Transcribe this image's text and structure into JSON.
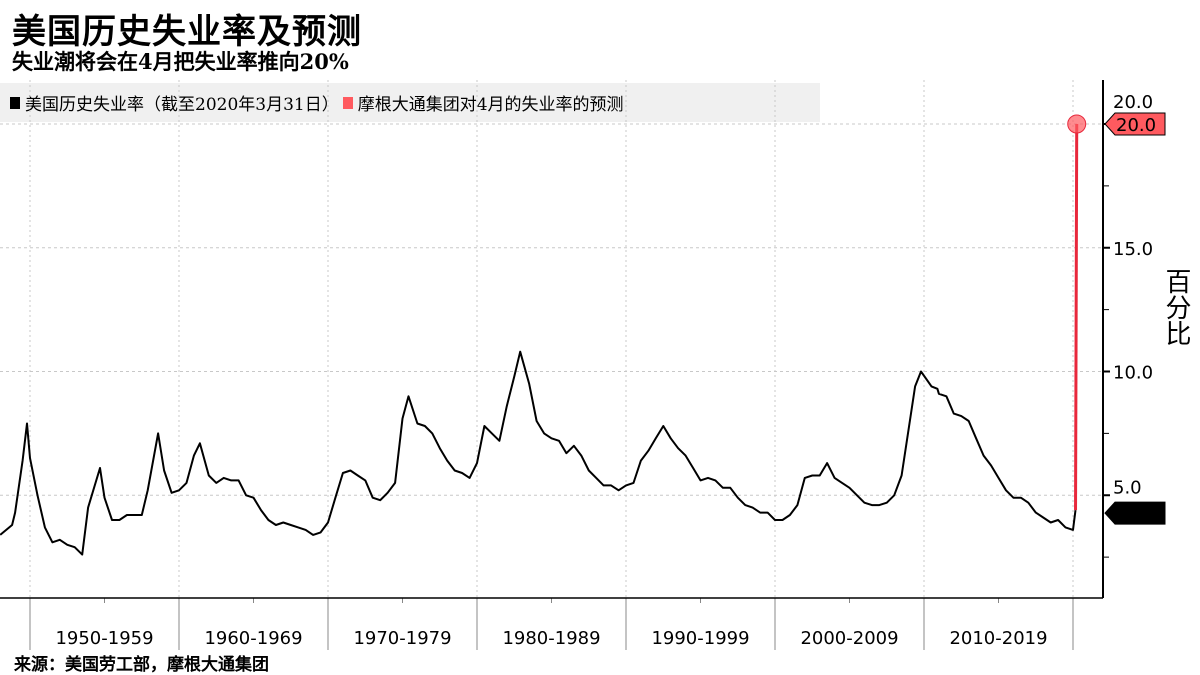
{
  "title": "美国历史失业率及预测",
  "subtitle": "失业潮将会在4月把失业率推向20%",
  "source": "来源：美国劳工部，摩根大通集团",
  "colors": {
    "history": "#000000",
    "forecast": "#ff5a5f",
    "forecast_line": "#e8283c",
    "legend_bg": "#f0f0f0"
  },
  "chart_data": {
    "type": "line",
    "ylabel": "百分比",
    "ylim": [
      0.8,
      21.5
    ],
    "xlim": [
      1948,
      2022
    ],
    "grid": true,
    "legend_placement": "top-left",
    "y_ticks": [
      "5.0",
      "10.0",
      "15.0",
      "20.0"
    ],
    "x_tick_labels": [
      "1950-1959",
      "1960-1969",
      "1970-1979",
      "1980-1989",
      "1990-1999",
      "2000-2009",
      "2010-2019"
    ],
    "last_value_label": "4.4",
    "forecast_value_label": "20.0",
    "series": [
      {
        "name": "美国历史失业率（截至2020年3月31日）",
        "color": "#000000",
        "points": [
          [
            1948.0,
            3.4
          ],
          [
            1948.8,
            3.8
          ],
          [
            1949.0,
            4.3
          ],
          [
            1949.5,
            6.4
          ],
          [
            1949.8,
            7.9
          ],
          [
            1950.0,
            6.5
          ],
          [
            1950.5,
            5.0
          ],
          [
            1951.0,
            3.7
          ],
          [
            1951.5,
            3.1
          ],
          [
            1952.0,
            3.2
          ],
          [
            1952.5,
            3.0
          ],
          [
            1953.0,
            2.9
          ],
          [
            1953.5,
            2.6
          ],
          [
            1953.9,
            4.5
          ],
          [
            1954.7,
            6.1
          ],
          [
            1955.0,
            4.9
          ],
          [
            1955.5,
            4.0
          ],
          [
            1956.0,
            4.0
          ],
          [
            1956.5,
            4.2
          ],
          [
            1957.0,
            4.2
          ],
          [
            1957.5,
            4.2
          ],
          [
            1957.9,
            5.2
          ],
          [
            1958.6,
            7.5
          ],
          [
            1959.0,
            6.0
          ],
          [
            1959.5,
            5.1
          ],
          [
            1960.0,
            5.2
          ],
          [
            1960.5,
            5.5
          ],
          [
            1961.0,
            6.6
          ],
          [
            1961.4,
            7.1
          ],
          [
            1962.0,
            5.8
          ],
          [
            1962.5,
            5.5
          ],
          [
            1963.0,
            5.7
          ],
          [
            1963.5,
            5.6
          ],
          [
            1964.0,
            5.6
          ],
          [
            1964.5,
            5.0
          ],
          [
            1965.0,
            4.9
          ],
          [
            1965.5,
            4.4
          ],
          [
            1966.0,
            4.0
          ],
          [
            1966.5,
            3.8
          ],
          [
            1967.0,
            3.9
          ],
          [
            1967.5,
            3.8
          ],
          [
            1968.0,
            3.7
          ],
          [
            1968.5,
            3.6
          ],
          [
            1969.0,
            3.4
          ],
          [
            1969.5,
            3.5
          ],
          [
            1970.0,
            3.9
          ],
          [
            1970.5,
            4.9
          ],
          [
            1971.0,
            5.9
          ],
          [
            1971.5,
            6.0
          ],
          [
            1972.0,
            5.8
          ],
          [
            1972.5,
            5.6
          ],
          [
            1973.0,
            4.9
          ],
          [
            1973.5,
            4.8
          ],
          [
            1974.0,
            5.1
          ],
          [
            1974.5,
            5.5
          ],
          [
            1975.0,
            8.1
          ],
          [
            1975.4,
            9.0
          ],
          [
            1976.0,
            7.9
          ],
          [
            1976.5,
            7.8
          ],
          [
            1977.0,
            7.5
          ],
          [
            1977.5,
            6.9
          ],
          [
            1978.0,
            6.4
          ],
          [
            1978.5,
            6.0
          ],
          [
            1979.0,
            5.9
          ],
          [
            1979.5,
            5.7
          ],
          [
            1980.0,
            6.3
          ],
          [
            1980.5,
            7.8
          ],
          [
            1981.0,
            7.5
          ],
          [
            1981.5,
            7.2
          ],
          [
            1982.0,
            8.6
          ],
          [
            1982.5,
            9.8
          ],
          [
            1982.9,
            10.8
          ],
          [
            1983.5,
            9.5
          ],
          [
            1984.0,
            8.0
          ],
          [
            1984.5,
            7.5
          ],
          [
            1985.0,
            7.3
          ],
          [
            1985.5,
            7.2
          ],
          [
            1986.0,
            6.7
          ],
          [
            1986.5,
            7.0
          ],
          [
            1987.0,
            6.6
          ],
          [
            1987.5,
            6.0
          ],
          [
            1988.0,
            5.7
          ],
          [
            1988.5,
            5.4
          ],
          [
            1989.0,
            5.4
          ],
          [
            1989.5,
            5.2
          ],
          [
            1990.0,
            5.4
          ],
          [
            1990.5,
            5.5
          ],
          [
            1991.0,
            6.4
          ],
          [
            1991.5,
            6.8
          ],
          [
            1992.0,
            7.3
          ],
          [
            1992.5,
            7.8
          ],
          [
            1993.0,
            7.3
          ],
          [
            1993.5,
            6.9
          ],
          [
            1994.0,
            6.6
          ],
          [
            1994.5,
            6.1
          ],
          [
            1995.0,
            5.6
          ],
          [
            1995.5,
            5.7
          ],
          [
            1996.0,
            5.6
          ],
          [
            1996.5,
            5.3
          ],
          [
            1997.0,
            5.3
          ],
          [
            1997.5,
            4.9
          ],
          [
            1998.0,
            4.6
          ],
          [
            1998.5,
            4.5
          ],
          [
            1999.0,
            4.3
          ],
          [
            1999.5,
            4.3
          ],
          [
            2000.0,
            4.0
          ],
          [
            2000.5,
            4.0
          ],
          [
            2001.0,
            4.2
          ],
          [
            2001.5,
            4.6
          ],
          [
            2002.0,
            5.7
          ],
          [
            2002.5,
            5.8
          ],
          [
            2003.0,
            5.8
          ],
          [
            2003.5,
            6.3
          ],
          [
            2004.0,
            5.7
          ],
          [
            2004.5,
            5.5
          ],
          [
            2005.0,
            5.3
          ],
          [
            2005.5,
            5.0
          ],
          [
            2006.0,
            4.7
          ],
          [
            2006.5,
            4.6
          ],
          [
            2007.0,
            4.6
          ],
          [
            2007.5,
            4.7
          ],
          [
            2008.0,
            5.0
          ],
          [
            2008.5,
            5.8
          ],
          [
            2009.0,
            7.8
          ],
          [
            2009.4,
            9.4
          ],
          [
            2009.8,
            10.0
          ],
          [
            2010.5,
            9.4
          ],
          [
            2010.9,
            9.3
          ],
          [
            2011.0,
            9.1
          ],
          [
            2011.5,
            9.0
          ],
          [
            2012.0,
            8.3
          ],
          [
            2012.5,
            8.2
          ],
          [
            2013.0,
            8.0
          ],
          [
            2013.5,
            7.3
          ],
          [
            2014.0,
            6.6
          ],
          [
            2014.5,
            6.2
          ],
          [
            2015.0,
            5.7
          ],
          [
            2015.5,
            5.2
          ],
          [
            2016.0,
            4.9
          ],
          [
            2016.5,
            4.9
          ],
          [
            2017.0,
            4.7
          ],
          [
            2017.5,
            4.3
          ],
          [
            2018.0,
            4.1
          ],
          [
            2018.5,
            3.9
          ],
          [
            2019.0,
            4.0
          ],
          [
            2019.5,
            3.7
          ],
          [
            2020.0,
            3.6
          ],
          [
            2020.17,
            4.4
          ]
        ]
      },
      {
        "name": "摩根大通集团对4月的失业率的预测",
        "color": "#ff5a5f",
        "points": [
          [
            2020.17,
            4.4
          ],
          [
            2020.25,
            20.0
          ]
        ]
      }
    ]
  }
}
